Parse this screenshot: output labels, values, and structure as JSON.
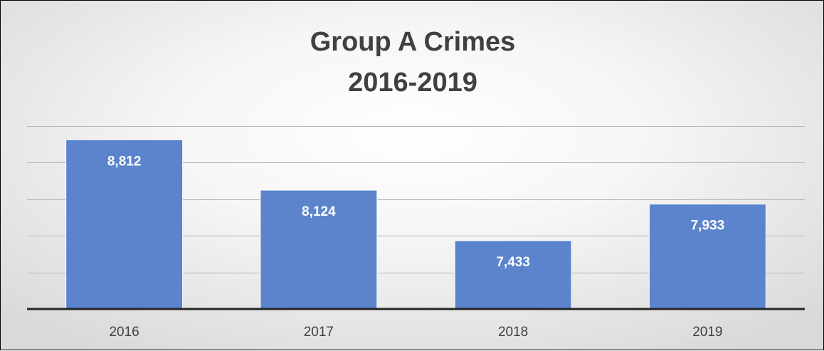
{
  "chart_data": {
    "type": "bar",
    "title": "Group A Crimes",
    "subtitle": "2016-2019",
    "categories": [
      "2016",
      "2017",
      "2018",
      "2019"
    ],
    "values": [
      8812,
      8124,
      7433,
      7933
    ],
    "data_labels": [
      "8,812",
      "8,124",
      "7,433",
      "7,933"
    ],
    "ylim": [
      6500,
      9000
    ],
    "grid": true,
    "legend": "none",
    "xlabel": "",
    "ylabel": "",
    "bar_color": "#5b84cc",
    "grid_color": "#b5b5b5",
    "axis_color": "#262626"
  }
}
